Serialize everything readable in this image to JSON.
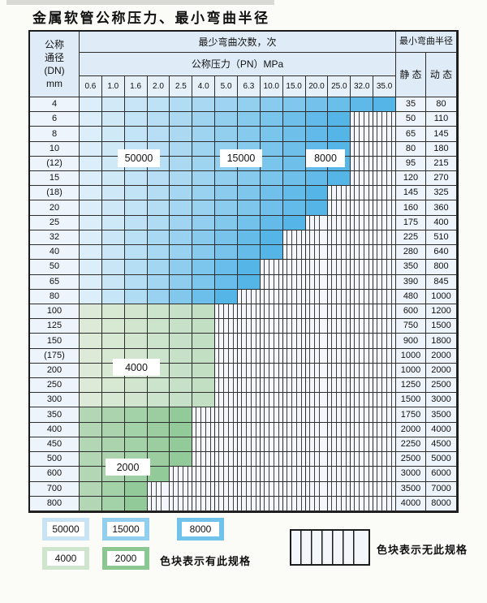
{
  "title": "金属软管公称压力、最小弯曲半径",
  "table": {
    "header": {
      "dn_l1": "公称",
      "dn_l2": "通径",
      "dn_l3": "(DN)",
      "dn_l4": "mm",
      "bend_cycles_label": "最少弯曲次数，次",
      "pressure_label": "公称压力（PN）MPa",
      "min_radius_label": "最小弯曲半径",
      "static_label": "静 态",
      "dynamic_label": "动 态",
      "pressure_columns": [
        "0.6",
        "1.0",
        "1.6",
        "2.0",
        "2.5",
        "4.0",
        "5.0",
        "6.3",
        "10.0",
        "15.0",
        "20.0",
        "25.0",
        "32.0",
        "35.0"
      ]
    },
    "rows": [
      {
        "dn": "4",
        "colored_cols": 14,
        "max_pn": "35.0",
        "scheme": "blue",
        "static": "35",
        "dynamic": "80"
      },
      {
        "dn": "6",
        "colored_cols": 12,
        "max_pn": "25.0",
        "scheme": "blue",
        "static": "50",
        "dynamic": "110"
      },
      {
        "dn": "8",
        "colored_cols": 12,
        "max_pn": "25.0",
        "scheme": "blue",
        "static": "65",
        "dynamic": "145"
      },
      {
        "dn": "10",
        "colored_cols": 12,
        "max_pn": "25.0",
        "scheme": "blue",
        "static": "80",
        "dynamic": "180"
      },
      {
        "dn": "(12)",
        "colored_cols": 12,
        "max_pn": "25.0",
        "scheme": "blue",
        "static": "95",
        "dynamic": "215"
      },
      {
        "dn": "15",
        "colored_cols": 12,
        "max_pn": "25.0",
        "scheme": "blue",
        "static": "120",
        "dynamic": "270"
      },
      {
        "dn": "(18)",
        "colored_cols": 11,
        "max_pn": "20.0",
        "scheme": "blue",
        "static": "145",
        "dynamic": "325"
      },
      {
        "dn": "20",
        "colored_cols": 11,
        "max_pn": "20.0",
        "scheme": "blue",
        "static": "160",
        "dynamic": "360"
      },
      {
        "dn": "25",
        "colored_cols": 10,
        "max_pn": "15.0",
        "scheme": "blue",
        "static": "175",
        "dynamic": "400"
      },
      {
        "dn": "32",
        "colored_cols": 9,
        "max_pn": "10.0",
        "scheme": "blue",
        "static": "225",
        "dynamic": "510"
      },
      {
        "dn": "40",
        "colored_cols": 9,
        "max_pn": "10.0",
        "scheme": "blue",
        "static": "280",
        "dynamic": "640"
      },
      {
        "dn": "50",
        "colored_cols": 8,
        "max_pn": "6.3",
        "scheme": "blue",
        "static": "350",
        "dynamic": "800"
      },
      {
        "dn": "65",
        "colored_cols": 8,
        "max_pn": "6.3",
        "scheme": "blue",
        "static": "390",
        "dynamic": "845"
      },
      {
        "dn": "80",
        "colored_cols": 7,
        "max_pn": "5.0",
        "scheme": "blue",
        "static": "480",
        "dynamic": "1000"
      },
      {
        "dn": "100",
        "colored_cols": 6,
        "max_pn": "4.0",
        "scheme": "green-light",
        "static": "600",
        "dynamic": "1200"
      },
      {
        "dn": "125",
        "colored_cols": 6,
        "max_pn": "4.0",
        "scheme": "green-light",
        "static": "750",
        "dynamic": "1500"
      },
      {
        "dn": "150",
        "colored_cols": 6,
        "max_pn": "4.0",
        "scheme": "green-light",
        "static": "900",
        "dynamic": "1800"
      },
      {
        "dn": "(175)",
        "colored_cols": 6,
        "max_pn": "4.0",
        "scheme": "green-light",
        "static": "1000",
        "dynamic": "2000"
      },
      {
        "dn": "200",
        "colored_cols": 6,
        "max_pn": "4.0",
        "scheme": "green-light",
        "static": "1000",
        "dynamic": "2000"
      },
      {
        "dn": "250",
        "colored_cols": 6,
        "max_pn": "4.0",
        "scheme": "green-light",
        "static": "1250",
        "dynamic": "2500"
      },
      {
        "dn": "300",
        "colored_cols": 6,
        "max_pn": "4.0",
        "scheme": "green-light",
        "static": "1500",
        "dynamic": "3000"
      },
      {
        "dn": "350",
        "colored_cols": 5,
        "max_pn": "2.5",
        "scheme": "green-dark",
        "static": "1750",
        "dynamic": "3500"
      },
      {
        "dn": "400",
        "colored_cols": 5,
        "max_pn": "2.5",
        "scheme": "green-dark",
        "static": "2000",
        "dynamic": "4000"
      },
      {
        "dn": "450",
        "colored_cols": 5,
        "max_pn": "2.5",
        "scheme": "green-dark",
        "static": "2250",
        "dynamic": "4500"
      },
      {
        "dn": "500",
        "colored_cols": 5,
        "max_pn": "2.5",
        "scheme": "green-dark",
        "static": "2500",
        "dynamic": "5000"
      },
      {
        "dn": "600",
        "colored_cols": 4,
        "max_pn": "2.0",
        "scheme": "green-dark",
        "static": "3000",
        "dynamic": "6000"
      },
      {
        "dn": "700",
        "colored_cols": 3,
        "max_pn": "1.6",
        "scheme": "green-dark",
        "static": "3500",
        "dynamic": "7000"
      },
      {
        "dn": "800",
        "colored_cols": 3,
        "max_pn": "1.6",
        "scheme": "green-dark",
        "static": "4000",
        "dynamic": "8000"
      }
    ],
    "zone_labels": {
      "z50000": "50000",
      "z15000": "15000",
      "z8000": "8000",
      "z4000": "4000",
      "z2000": "2000"
    }
  },
  "legend": {
    "cycles_50000": "50000",
    "cycles_15000": "15000",
    "cycles_8000": "8000",
    "cycles_4000": "4000",
    "cycles_2000": "2000",
    "note_has_spec": "色块表示有此规格",
    "note_no_spec": "色块表示无此规格"
  },
  "colors": {
    "cycles_50000": "#c8e3f4",
    "cycles_15000": "#92cfee",
    "cycles_8000": "#6fc2ea",
    "cycles_4000": "#cfe5cd",
    "cycles_2000": "#8cc791",
    "blue_gradient_start": "#dceef9",
    "blue_gradient_end": "#55b5e7",
    "green_light_start": "#dcead7",
    "green_light_end": "#c2dfc4",
    "green_dark_start": "#b3d7b5",
    "green_dark_end": "#93ca9a",
    "header_bg": "#dfecf7",
    "hatch_bg": "#f3f7fb"
  }
}
